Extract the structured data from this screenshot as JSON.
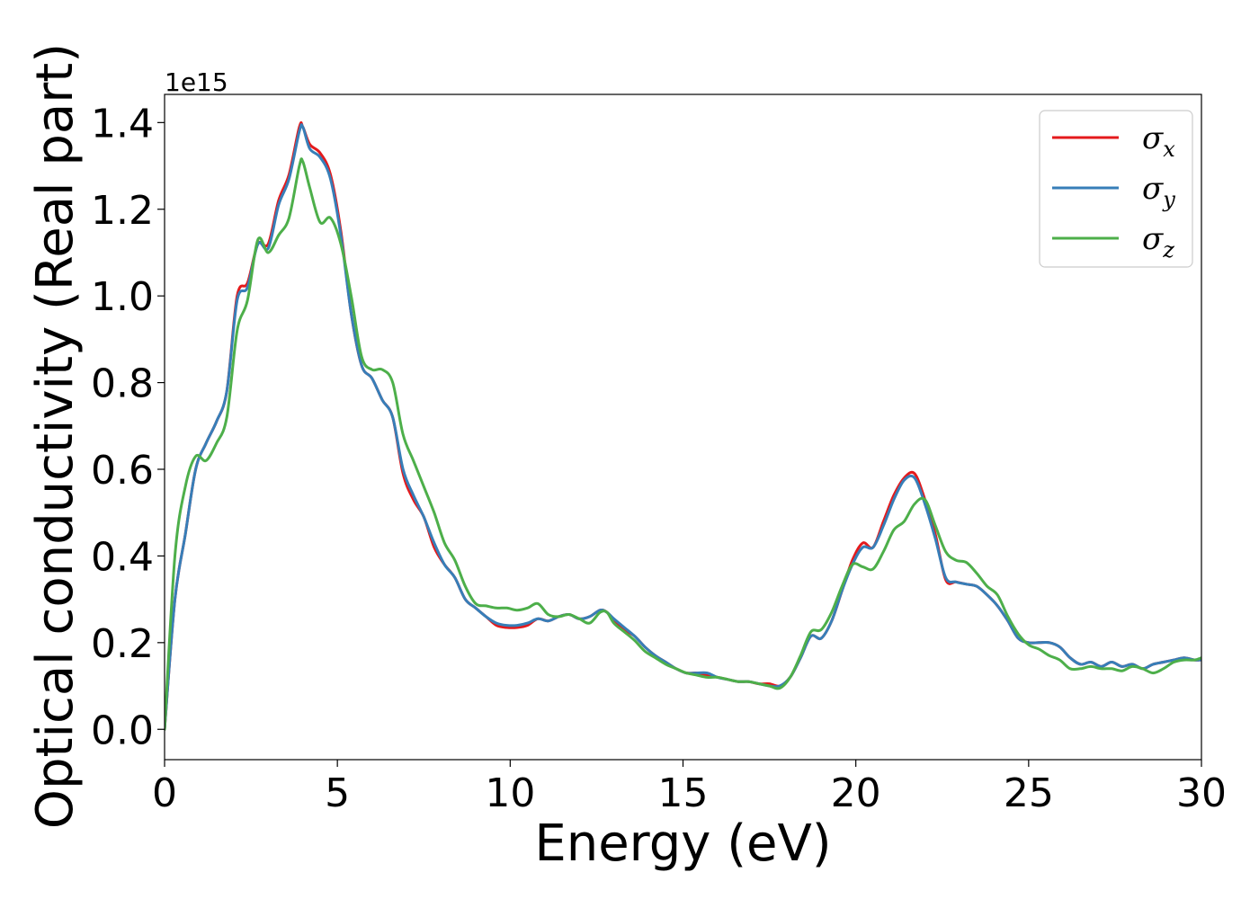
{
  "chart_data": {
    "type": "line",
    "xlabel": "Energy (eV)",
    "ylabel": "Optical conductivity (Real part)",
    "y_offset_label": "1e15",
    "xlim": [
      0,
      30
    ],
    "ylim": [
      -0.07,
      1.465
    ],
    "x_ticks": [
      0,
      5,
      10,
      15,
      20,
      25,
      30
    ],
    "x_tick_labels": [
      "0",
      "5",
      "10",
      "15",
      "20",
      "25",
      "30"
    ],
    "y_ticks": [
      0.0,
      0.2,
      0.4,
      0.6,
      0.8,
      1.0,
      1.2,
      1.4
    ],
    "y_tick_labels": [
      "0.0",
      "0.2",
      "0.4",
      "0.6",
      "0.8",
      "1.0",
      "1.2",
      "1.4"
    ],
    "grid": false,
    "legend_position": "top-right",
    "series": [
      {
        "name": "σx",
        "symbol": "σ",
        "sub": "x",
        "color": "#e41a1c",
        "x": [
          0,
          0.3,
          0.6,
          0.9,
          1.2,
          1.5,
          1.8,
          2.1,
          2.4,
          2.7,
          3.0,
          3.3,
          3.6,
          3.9,
          4.0,
          4.2,
          4.5,
          4.8,
          5.1,
          5.4,
          5.7,
          6.0,
          6.3,
          6.6,
          6.9,
          7.2,
          7.5,
          7.8,
          8.1,
          8.4,
          8.7,
          9.0,
          9.3,
          9.6,
          9.9,
          10.2,
          10.5,
          10.8,
          11.1,
          11.4,
          11.7,
          12.0,
          12.3,
          12.6,
          12.8,
          13.0,
          13.3,
          13.6,
          13.9,
          14.2,
          14.5,
          14.8,
          15.1,
          15.4,
          15.7,
          16.0,
          16.3,
          16.6,
          16.9,
          17.2,
          17.5,
          17.8,
          18.1,
          18.4,
          18.7,
          19.0,
          19.3,
          19.6,
          19.9,
          20.2,
          20.5,
          20.8,
          21.1,
          21.4,
          21.7,
          22.0,
          22.3,
          22.6,
          22.9,
          23.2,
          23.5,
          23.8,
          24.1,
          24.4,
          24.7,
          25.0,
          25.3,
          25.6,
          25.9,
          26.2,
          26.5,
          26.8,
          27.1,
          27.4,
          27.7,
          28.0,
          28.3,
          28.6,
          28.9,
          29.2,
          29.5,
          29.8,
          30.0
        ],
        "y": [
          0.0,
          0.3,
          0.45,
          0.6,
          0.66,
          0.71,
          0.78,
          1.0,
          1.03,
          1.12,
          1.12,
          1.22,
          1.28,
          1.39,
          1.39,
          1.35,
          1.33,
          1.28,
          1.15,
          0.96,
          0.84,
          0.81,
          0.76,
          0.72,
          0.59,
          0.53,
          0.49,
          0.42,
          0.38,
          0.35,
          0.3,
          0.28,
          0.26,
          0.24,
          0.235,
          0.235,
          0.24,
          0.255,
          0.25,
          0.26,
          0.265,
          0.255,
          0.26,
          0.275,
          0.27,
          0.25,
          0.23,
          0.215,
          0.19,
          0.17,
          0.155,
          0.14,
          0.13,
          0.13,
          0.125,
          0.12,
          0.115,
          0.11,
          0.11,
          0.105,
          0.105,
          0.1,
          0.12,
          0.165,
          0.215,
          0.21,
          0.25,
          0.32,
          0.39,
          0.43,
          0.42,
          0.48,
          0.54,
          0.58,
          0.59,
          0.53,
          0.45,
          0.345,
          0.34,
          0.335,
          0.33,
          0.31,
          0.285,
          0.25,
          0.21,
          0.2,
          0.2,
          0.2,
          0.19,
          0.165,
          0.15,
          0.155,
          0.145,
          0.155,
          0.145,
          0.15,
          0.14,
          0.15,
          0.155,
          0.16,
          0.165,
          0.16,
          0.16
        ]
      },
      {
        "name": "σy",
        "symbol": "σ",
        "sub": "y",
        "color": "#377eb8",
        "x": [
          0,
          0.3,
          0.6,
          0.9,
          1.2,
          1.5,
          1.8,
          2.1,
          2.4,
          2.7,
          3.0,
          3.3,
          3.6,
          3.9,
          4.0,
          4.2,
          4.5,
          4.8,
          5.1,
          5.4,
          5.7,
          6.0,
          6.3,
          6.6,
          6.9,
          7.2,
          7.5,
          7.8,
          8.1,
          8.4,
          8.7,
          9.0,
          9.3,
          9.6,
          9.9,
          10.2,
          10.5,
          10.8,
          11.1,
          11.4,
          11.7,
          12.0,
          12.3,
          12.6,
          12.8,
          13.0,
          13.3,
          13.6,
          13.9,
          14.2,
          14.5,
          14.8,
          15.1,
          15.4,
          15.7,
          16.0,
          16.3,
          16.6,
          16.9,
          17.2,
          17.5,
          17.8,
          18.1,
          18.4,
          18.7,
          19.0,
          19.3,
          19.6,
          19.9,
          20.2,
          20.5,
          20.8,
          21.1,
          21.4,
          21.7,
          22.0,
          22.3,
          22.6,
          22.9,
          23.2,
          23.5,
          23.8,
          24.1,
          24.4,
          24.7,
          25.0,
          25.3,
          25.6,
          25.9,
          26.2,
          26.5,
          26.8,
          27.1,
          27.4,
          27.7,
          28.0,
          28.3,
          28.6,
          28.9,
          29.2,
          29.5,
          29.8,
          30.0
        ],
        "y": [
          0.0,
          0.3,
          0.45,
          0.6,
          0.66,
          0.71,
          0.78,
          0.99,
          1.02,
          1.12,
          1.11,
          1.21,
          1.27,
          1.38,
          1.39,
          1.34,
          1.32,
          1.27,
          1.14,
          0.96,
          0.84,
          0.81,
          0.76,
          0.72,
          0.6,
          0.54,
          0.49,
          0.43,
          0.38,
          0.35,
          0.3,
          0.28,
          0.26,
          0.245,
          0.24,
          0.24,
          0.245,
          0.255,
          0.25,
          0.26,
          0.265,
          0.255,
          0.26,
          0.275,
          0.27,
          0.255,
          0.235,
          0.215,
          0.19,
          0.17,
          0.155,
          0.14,
          0.13,
          0.13,
          0.13,
          0.12,
          0.115,
          0.11,
          0.11,
          0.105,
          0.1,
          0.1,
          0.12,
          0.165,
          0.215,
          0.21,
          0.25,
          0.32,
          0.38,
          0.42,
          0.42,
          0.47,
          0.53,
          0.575,
          0.58,
          0.52,
          0.44,
          0.35,
          0.34,
          0.335,
          0.33,
          0.31,
          0.285,
          0.25,
          0.21,
          0.2,
          0.2,
          0.2,
          0.19,
          0.165,
          0.15,
          0.155,
          0.145,
          0.155,
          0.145,
          0.15,
          0.14,
          0.15,
          0.155,
          0.16,
          0.165,
          0.16,
          0.16
        ]
      },
      {
        "name": "σz",
        "symbol": "σ",
        "sub": "z",
        "color": "#4daf4a",
        "x": [
          0,
          0.3,
          0.6,
          0.9,
          1.2,
          1.5,
          1.8,
          2.1,
          2.4,
          2.7,
          3.0,
          3.3,
          3.6,
          3.9,
          4.0,
          4.2,
          4.5,
          4.8,
          5.1,
          5.4,
          5.7,
          6.0,
          6.3,
          6.6,
          6.9,
          7.2,
          7.5,
          7.8,
          8.1,
          8.4,
          8.7,
          9.0,
          9.3,
          9.6,
          9.9,
          10.2,
          10.5,
          10.8,
          11.1,
          11.4,
          11.7,
          12.0,
          12.3,
          12.6,
          12.8,
          13.0,
          13.3,
          13.6,
          13.9,
          14.2,
          14.5,
          14.8,
          15.1,
          15.4,
          15.7,
          16.0,
          16.3,
          16.6,
          16.9,
          17.2,
          17.5,
          17.8,
          18.1,
          18.4,
          18.7,
          19.0,
          19.3,
          19.6,
          19.9,
          20.2,
          20.5,
          20.8,
          21.1,
          21.4,
          21.7,
          22.0,
          22.3,
          22.6,
          22.9,
          23.2,
          23.5,
          23.8,
          24.1,
          24.4,
          24.7,
          25.0,
          25.3,
          25.6,
          25.9,
          26.2,
          26.5,
          26.8,
          27.1,
          27.4,
          27.7,
          28.0,
          28.3,
          28.6,
          28.9,
          29.2,
          29.5,
          29.8,
          30.0
        ],
        "y": [
          0.0,
          0.4,
          0.56,
          0.63,
          0.62,
          0.66,
          0.72,
          0.92,
          0.99,
          1.13,
          1.1,
          1.14,
          1.18,
          1.3,
          1.31,
          1.25,
          1.17,
          1.18,
          1.12,
          1.0,
          0.86,
          0.83,
          0.83,
          0.8,
          0.68,
          0.62,
          0.56,
          0.5,
          0.43,
          0.39,
          0.33,
          0.29,
          0.285,
          0.28,
          0.28,
          0.275,
          0.28,
          0.29,
          0.265,
          0.26,
          0.265,
          0.255,
          0.245,
          0.27,
          0.27,
          0.245,
          0.225,
          0.205,
          0.18,
          0.165,
          0.15,
          0.14,
          0.13,
          0.125,
          0.12,
          0.12,
          0.115,
          0.11,
          0.11,
          0.105,
          0.1,
          0.095,
          0.12,
          0.17,
          0.225,
          0.23,
          0.27,
          0.33,
          0.38,
          0.375,
          0.37,
          0.41,
          0.46,
          0.48,
          0.52,
          0.53,
          0.47,
          0.41,
          0.39,
          0.385,
          0.36,
          0.33,
          0.31,
          0.26,
          0.22,
          0.195,
          0.185,
          0.17,
          0.16,
          0.14,
          0.14,
          0.145,
          0.14,
          0.14,
          0.135,
          0.145,
          0.14,
          0.13,
          0.14,
          0.155,
          0.16,
          0.16,
          0.165
        ]
      }
    ]
  }
}
